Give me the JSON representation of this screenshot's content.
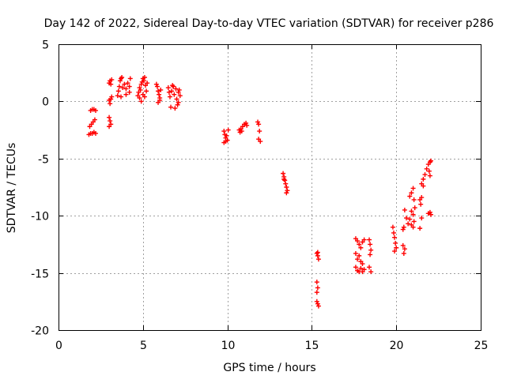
{
  "chart_data": {
    "type": "scatter",
    "title": "Day 142 of 2022, Sidereal Day-to-day VTEC variation (SDTVAR) for receiver p286",
    "xlabel": "GPS time / hours",
    "ylabel": "SDTVAR / TECUs",
    "xlim": [
      0,
      25
    ],
    "ylim": [
      -20,
      5
    ],
    "xticks": [
      0,
      5,
      10,
      15,
      20,
      25
    ],
    "yticks": [
      -20,
      -15,
      -10,
      -5,
      0,
      5
    ],
    "xtick_labels": [
      "0",
      "5",
      "10",
      "15",
      "20",
      "25"
    ],
    "ytick_labels": [
      "-20",
      "-15",
      "-10",
      "-5",
      "0",
      "5"
    ],
    "grid": true,
    "legend": null,
    "marker": "plus",
    "series_color": "#ff0000",
    "series": [
      {
        "name": "SDTVAR",
        "points": [
          [
            1.9,
            -0.8
          ],
          [
            2.0,
            -0.7
          ],
          [
            2.1,
            -0.7
          ],
          [
            2.2,
            -0.8
          ],
          [
            1.85,
            -2.2
          ],
          [
            1.95,
            -2.0
          ],
          [
            2.05,
            -1.8
          ],
          [
            2.15,
            -1.6
          ],
          [
            1.8,
            -2.9
          ],
          [
            1.9,
            -2.8
          ],
          [
            2.0,
            -2.8
          ],
          [
            2.1,
            -2.7
          ],
          [
            2.2,
            -2.8
          ],
          [
            3.0,
            1.6
          ],
          [
            3.05,
            1.8
          ],
          [
            3.1,
            1.5
          ],
          [
            3.15,
            1.9
          ],
          [
            3.0,
            0.1
          ],
          [
            3.05,
            -0.2
          ],
          [
            3.1,
            0.2
          ],
          [
            3.15,
            0.4
          ],
          [
            3.0,
            -1.4
          ],
          [
            3.05,
            -1.7
          ],
          [
            3.1,
            -2.0
          ],
          [
            3.0,
            -2.2
          ],
          [
            3.5,
            0.5
          ],
          [
            3.55,
            0.9
          ],
          [
            3.6,
            1.3
          ],
          [
            3.65,
            1.8
          ],
          [
            3.7,
            2.0
          ],
          [
            3.75,
            2.1
          ],
          [
            3.8,
            1.2
          ],
          [
            3.9,
            1.5
          ],
          [
            4.0,
            1.1
          ],
          [
            4.1,
            1.6
          ],
          [
            4.2,
            1.3
          ],
          [
            4.25,
            2.0
          ],
          [
            3.7,
            0.4
          ],
          [
            4.0,
            0.6
          ],
          [
            4.2,
            0.8
          ],
          [
            4.7,
            0.5
          ],
          [
            4.75,
            0.8
          ],
          [
            4.8,
            1.2
          ],
          [
            4.85,
            1.0
          ],
          [
            4.9,
            1.5
          ],
          [
            4.95,
            1.7
          ],
          [
            5.0,
            2.0
          ],
          [
            5.05,
            1.8
          ],
          [
            5.1,
            2.1
          ],
          [
            5.15,
            1.4
          ],
          [
            5.2,
            0.9
          ],
          [
            5.25,
            1.6
          ],
          [
            4.8,
            0.3
          ],
          [
            4.9,
            0.0
          ],
          [
            5.0,
            0.6
          ],
          [
            5.1,
            0.4
          ],
          [
            5.8,
            1.5
          ],
          [
            5.85,
            1.3
          ],
          [
            5.9,
            0.9
          ],
          [
            5.95,
            0.6
          ],
          [
            6.0,
            0.3
          ],
          [
            5.9,
            -0.1
          ],
          [
            6.0,
            0.1
          ],
          [
            6.05,
            1.0
          ],
          [
            6.5,
            1.2
          ],
          [
            6.55,
            0.8
          ],
          [
            6.6,
            0.4
          ],
          [
            6.65,
            -0.5
          ],
          [
            6.7,
            0.9
          ],
          [
            6.75,
            1.4
          ],
          [
            6.8,
            1.3
          ],
          [
            6.85,
            0.6
          ],
          [
            6.9,
            -0.6
          ],
          [
            6.95,
            1.1
          ],
          [
            7.0,
            0.2
          ],
          [
            7.05,
            -0.3
          ],
          [
            7.1,
            0.8
          ],
          [
            7.15,
            1.0
          ],
          [
            7.2,
            0.5
          ],
          [
            7.1,
            -0.1
          ],
          [
            9.8,
            -2.6
          ],
          [
            9.85,
            -2.9
          ],
          [
            9.9,
            -3.2
          ],
          [
            9.95,
            -3.0
          ],
          [
            10.0,
            -3.4
          ],
          [
            10.05,
            -2.5
          ],
          [
            9.8,
            -3.6
          ],
          [
            9.9,
            -3.5
          ],
          [
            10.7,
            -2.5
          ],
          [
            10.8,
            -2.4
          ],
          [
            10.9,
            -2.2
          ],
          [
            11.0,
            -2.0
          ],
          [
            11.1,
            -1.9
          ],
          [
            11.15,
            -2.1
          ],
          [
            10.75,
            -2.7
          ],
          [
            10.85,
            -2.6
          ],
          [
            11.8,
            -1.8
          ],
          [
            11.85,
            -2.0
          ],
          [
            11.9,
            -2.6
          ],
          [
            11.85,
            -3.3
          ],
          [
            11.95,
            -3.5
          ],
          [
            13.3,
            -6.3
          ],
          [
            13.35,
            -6.6
          ],
          [
            13.4,
            -6.9
          ],
          [
            13.45,
            -7.2
          ],
          [
            13.5,
            -7.5
          ],
          [
            13.55,
            -7.8
          ],
          [
            13.5,
            -8.0
          ],
          [
            13.35,
            -6.8
          ],
          [
            15.3,
            -13.3
          ],
          [
            15.35,
            -13.5
          ],
          [
            15.4,
            -13.8
          ],
          [
            15.35,
            -13.2
          ],
          [
            15.3,
            -15.8
          ],
          [
            15.35,
            -16.3
          ],
          [
            15.3,
            -16.7
          ],
          [
            15.3,
            -17.5
          ],
          [
            15.35,
            -17.7
          ],
          [
            15.4,
            -17.9
          ],
          [
            17.6,
            -12.0
          ],
          [
            17.7,
            -12.2
          ],
          [
            17.8,
            -12.5
          ],
          [
            17.9,
            -12.8
          ],
          [
            18.0,
            -12.3
          ],
          [
            18.1,
            -12.1
          ],
          [
            17.6,
            -13.3
          ],
          [
            17.7,
            -13.8
          ],
          [
            17.8,
            -13.5
          ],
          [
            17.9,
            -14.0
          ],
          [
            18.0,
            -14.2
          ],
          [
            17.6,
            -14.5
          ],
          [
            17.7,
            -14.8
          ],
          [
            17.8,
            -14.9
          ],
          [
            17.9,
            -14.6
          ],
          [
            18.0,
            -14.9
          ],
          [
            18.1,
            -14.7
          ],
          [
            18.4,
            -12.1
          ],
          [
            18.45,
            -12.5
          ],
          [
            18.5,
            -13.0
          ],
          [
            18.45,
            -13.4
          ],
          [
            18.4,
            -14.5
          ],
          [
            18.5,
            -14.9
          ],
          [
            19.8,
            -11.0
          ],
          [
            19.85,
            -11.5
          ],
          [
            19.9,
            -11.9
          ],
          [
            19.95,
            -12.4
          ],
          [
            20.0,
            -12.8
          ],
          [
            19.9,
            -13.1
          ],
          [
            20.4,
            -11.2
          ],
          [
            20.45,
            -11.0
          ],
          [
            20.4,
            -12.6
          ],
          [
            20.5,
            -12.9
          ],
          [
            20.45,
            -13.3
          ],
          [
            20.5,
            -9.5
          ],
          [
            20.6,
            -10.2
          ],
          [
            20.7,
            -10.7
          ],
          [
            20.8,
            -10.3
          ],
          [
            20.9,
            -9.6
          ],
          [
            20.8,
            -8.3
          ],
          [
            20.9,
            -8.0
          ],
          [
            21.0,
            -7.6
          ],
          [
            21.05,
            -8.6
          ],
          [
            20.9,
            -10.8
          ],
          [
            21.0,
            -11.0
          ],
          [
            21.05,
            -10.5
          ],
          [
            21.0,
            -9.9
          ],
          [
            21.1,
            -9.3
          ],
          [
            21.4,
            -8.6
          ],
          [
            21.5,
            -8.4
          ],
          [
            21.45,
            -9.0
          ],
          [
            21.5,
            -10.2
          ],
          [
            21.4,
            -11.1
          ],
          [
            21.5,
            -7.2
          ],
          [
            21.6,
            -6.8
          ],
          [
            21.7,
            -6.4
          ],
          [
            21.6,
            -7.4
          ],
          [
            21.8,
            -5.9
          ],
          [
            21.9,
            -5.5
          ],
          [
            22.0,
            -5.3
          ],
          [
            22.05,
            -5.2
          ],
          [
            21.95,
            -6.1
          ],
          [
            22.0,
            -6.5
          ],
          [
            21.9,
            -9.8
          ],
          [
            22.0,
            -9.7
          ],
          [
            22.05,
            -9.9
          ]
        ]
      }
    ]
  }
}
